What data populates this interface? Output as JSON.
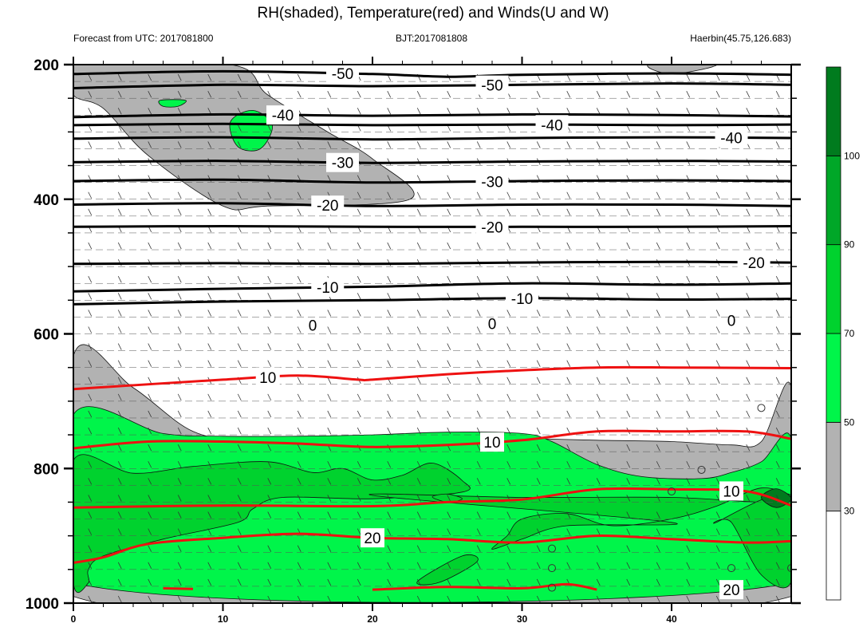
{
  "chart_data": {
    "type": "contour",
    "title": "RH(shaded), Temperature(red) and Winds(U and W)",
    "left_string": "Forecast from UTC: 2017081800",
    "center_string": "BJT:2017081808",
    "right_string": "Haerbin(45.75,126.683)",
    "x_axis": {
      "range": [
        0,
        48
      ],
      "ticks": [
        "0",
        "10",
        "20",
        "30",
        "40"
      ]
    },
    "y_axis": {
      "range": [
        200,
        1000
      ],
      "reversed": true,
      "ticks": [
        "200",
        "400",
        "600",
        "800",
        "1000"
      ]
    },
    "colorbar": {
      "levels": [
        "30",
        "50",
        "70",
        "90",
        "100"
      ],
      "colors": [
        "#ffffff",
        "#b2b2b2",
        "#00f54a",
        "#00d22e",
        "#00a728",
        "#007b1e"
      ]
    },
    "rh_regions": [
      {
        "level": "50-70",
        "color": "#b2b2b2",
        "points": [
          [
            0,
            200
          ],
          [
            10.5,
            200
          ],
          [
            13,
            245
          ],
          [
            17,
            300
          ],
          [
            20,
            340
          ],
          [
            22.5,
            400
          ],
          [
            13,
            410
          ],
          [
            10,
            410
          ],
          [
            5,
            335
          ],
          [
            2,
            265
          ],
          [
            0,
            245
          ]
        ]
      },
      {
        "level": "50-70",
        "color": "#b2b2b2",
        "points": [
          [
            38.5,
            200
          ],
          [
            43,
            200
          ],
          [
            40,
            214
          ]
        ]
      },
      {
        "level": "70-90",
        "color": "#00f54a",
        "points": [
          [
            5.8,
            253
          ],
          [
            7.5,
            253
          ],
          [
            7,
            262
          ],
          [
            6,
            262
          ]
        ]
      },
      {
        "level": "70-90",
        "color": "#00f54a",
        "points": [
          [
            10.5,
            285
          ],
          [
            12,
            268
          ],
          [
            13.3,
            290
          ],
          [
            12.5,
            325
          ],
          [
            11,
            322
          ]
        ]
      },
      {
        "level": "50-70",
        "color": "#b2b2b2",
        "points": [
          [
            0,
            633
          ],
          [
            4,
            680
          ],
          [
            8,
            745
          ],
          [
            12,
            760
          ],
          [
            15,
            760
          ],
          [
            20,
            753
          ],
          [
            25,
            750
          ],
          [
            30,
            755
          ],
          [
            35,
            758
          ],
          [
            40,
            760
          ],
          [
            44,
            765
          ],
          [
            46,
            760
          ],
          [
            48,
            680
          ],
          [
            48,
            990
          ],
          [
            0,
            990
          ]
        ]
      },
      {
        "level": "70-90",
        "color": "#00f54a",
        "points": [
          [
            0,
            720
          ],
          [
            6,
            748
          ],
          [
            10,
            752
          ],
          [
            15,
            752
          ],
          [
            20,
            750
          ],
          [
            25,
            746
          ],
          [
            30,
            748
          ],
          [
            32,
            760
          ],
          [
            35,
            794
          ],
          [
            38,
            812
          ],
          [
            42,
            815
          ],
          [
            44,
            806
          ],
          [
            46,
            790
          ],
          [
            48,
            756
          ],
          [
            48,
            970
          ],
          [
            0,
            970
          ]
        ]
      },
      {
        "level": "90-100",
        "color": "#00d22e",
        "points": [
          [
            0,
            788
          ],
          [
            4,
            807
          ],
          [
            8,
            797
          ],
          [
            13,
            790
          ],
          [
            16,
            806
          ],
          [
            18,
            800
          ],
          [
            20,
            817
          ],
          [
            22,
            810
          ],
          [
            24,
            792
          ],
          [
            26,
            818
          ],
          [
            26,
            835
          ],
          [
            20,
            845
          ],
          [
            14,
            843
          ],
          [
            12,
            860
          ],
          [
            11,
            880
          ],
          [
            6,
            905
          ],
          [
            2,
            930
          ],
          [
            1,
            950
          ],
          [
            1,
            970
          ],
          [
            0,
            970
          ]
        ]
      },
      {
        "level": "90-100",
        "color": "#00d22e",
        "points": [
          [
            20,
            840
          ],
          [
            30,
            843
          ],
          [
            40,
            843
          ],
          [
            46,
            850
          ],
          [
            48,
            843
          ],
          [
            46,
            829
          ],
          [
            43,
            856
          ],
          [
            40,
            875
          ],
          [
            36,
            885
          ],
          [
            33,
            867
          ],
          [
            30,
            875
          ],
          [
            29,
            900
          ],
          [
            28,
            920
          ],
          [
            30,
            905
          ],
          [
            33,
            885
          ],
          [
            40,
            880
          ]
        ]
      },
      {
        "level": "90-100",
        "color": "#00d22e",
        "points": [
          [
            43,
            880
          ],
          [
            48,
            840
          ],
          [
            48,
            968
          ],
          [
            46,
            958
          ],
          [
            44,
            880
          ]
        ]
      },
      {
        "level": "90-100",
        "color": "#00d22e",
        "points": [
          [
            23,
            968
          ],
          [
            26,
            930
          ],
          [
            27,
            938
          ],
          [
            24.5,
            969
          ]
        ]
      },
      {
        "level": "90-100",
        "color": "#00d22e",
        "points": [
          [
            24,
            842
          ],
          [
            25,
            838
          ],
          [
            26,
            845
          ],
          [
            25,
            850
          ]
        ]
      },
      {
        "level": "100+",
        "color": "#007b1e",
        "points": [
          [
            46,
            843
          ],
          [
            47,
            830
          ],
          [
            48,
            845
          ],
          [
            47,
            858
          ]
        ]
      }
    ],
    "temperature_contours": [
      {
        "label": "-50",
        "color": "#000000",
        "points": [
          [
            0,
            214
          ],
          [
            10,
            210
          ],
          [
            20,
            214
          ],
          [
            25,
            218
          ],
          [
            30,
            215
          ],
          [
            40,
            213
          ],
          [
            48,
            215
          ]
        ],
        "label_x": 18
      },
      {
        "label": "-50",
        "color": "#000000",
        "points": [
          [
            0,
            235
          ],
          [
            10,
            230
          ],
          [
            20,
            232
          ],
          [
            30,
            230
          ],
          [
            40,
            228
          ],
          [
            48,
            230
          ]
        ],
        "label_x": 28
      },
      {
        "label": "-40",
        "color": "#000000",
        "points": [
          [
            0,
            278
          ],
          [
            10,
            274
          ],
          [
            20,
            276
          ],
          [
            30,
            274
          ],
          [
            40,
            275
          ],
          [
            48,
            277
          ]
        ],
        "label_x": 14
      },
      {
        "label": "-40",
        "color": "#000000",
        "points": [
          [
            0,
            290
          ],
          [
            10,
            288
          ],
          [
            20,
            290
          ],
          [
            30,
            289
          ],
          [
            40,
            290
          ],
          [
            48,
            289
          ]
        ],
        "label_x": 32
      },
      {
        "label": "-40",
        "color": "#000000",
        "points": [
          [
            0,
            310
          ],
          [
            10,
            308
          ],
          [
            20,
            311
          ],
          [
            30,
            309
          ],
          [
            40,
            308
          ],
          [
            48,
            309
          ]
        ],
        "label_x": 44
      },
      {
        "label": "-30",
        "color": "#000000",
        "points": [
          [
            0,
            345
          ],
          [
            10,
            343
          ],
          [
            20,
            346
          ],
          [
            30,
            344
          ],
          [
            40,
            343
          ],
          [
            48,
            344
          ]
        ],
        "label_x": 18
      },
      {
        "label": "-30",
        "color": "#000000",
        "points": [
          [
            0,
            373
          ],
          [
            10,
            371
          ],
          [
            20,
            375
          ],
          [
            30,
            373
          ],
          [
            40,
            372
          ],
          [
            48,
            373
          ]
        ],
        "label_x": 28
      },
      {
        "label": "-20",
        "color": "#000000",
        "points": [
          [
            0,
            408
          ],
          [
            10,
            406
          ],
          [
            20,
            410
          ],
          [
            30,
            408
          ],
          [
            40,
            408
          ],
          [
            48,
            410
          ]
        ],
        "label_x": 17
      },
      {
        "label": "-20",
        "color": "#000000",
        "points": [
          [
            0,
            441
          ],
          [
            10,
            440
          ],
          [
            20,
            441
          ],
          [
            30,
            441
          ],
          [
            40,
            441
          ],
          [
            48,
            440
          ]
        ],
        "label_x": 28
      },
      {
        "label": "-20",
        "color": "#000000",
        "points": [
          [
            0,
            496
          ],
          [
            10,
            495
          ],
          [
            20,
            496
          ],
          [
            30,
            494
          ],
          [
            40,
            493
          ],
          [
            48,
            494
          ]
        ],
        "label_x": 45.5
      },
      {
        "label": "-10",
        "color": "#000000",
        "points": [
          [
            0,
            537
          ],
          [
            10,
            533
          ],
          [
            20,
            530
          ],
          [
            30,
            525
          ],
          [
            40,
            527
          ],
          [
            48,
            525
          ]
        ],
        "label_x": 17
      },
      {
        "label": "-10",
        "color": "#000000",
        "points": [
          [
            0,
            556
          ],
          [
            10,
            552
          ],
          [
            20,
            550
          ],
          [
            30,
            547
          ],
          [
            40,
            549
          ],
          [
            48,
            548
          ]
        ],
        "label_x": 30
      },
      {
        "label": "10",
        "color": "#ee1111",
        "points": [
          [
            0,
            682
          ],
          [
            10,
            668
          ],
          [
            15,
            662
          ],
          [
            19,
            668
          ],
          [
            20,
            668
          ],
          [
            25,
            660
          ],
          [
            30,
            654
          ],
          [
            35,
            650
          ],
          [
            40,
            650
          ],
          [
            48,
            651
          ]
        ],
        "label_x": 13
      },
      {
        "label": "10",
        "color": "#ee1111",
        "points": [
          [
            0,
            770
          ],
          [
            5,
            760
          ],
          [
            10,
            760
          ],
          [
            15,
            763
          ],
          [
            20,
            768
          ],
          [
            25,
            765
          ],
          [
            30,
            758
          ],
          [
            35,
            745
          ],
          [
            40,
            745
          ],
          [
            45,
            745
          ],
          [
            48,
            756
          ]
        ],
        "label_x": 28
      },
      {
        "label": "10",
        "color": "#ee1111",
        "points": [
          [
            0,
            858
          ],
          [
            10,
            855
          ],
          [
            20,
            856
          ],
          [
            25,
            850
          ],
          [
            30,
            846
          ],
          [
            35,
            831
          ],
          [
            40,
            831
          ],
          [
            45,
            834
          ],
          [
            48,
            855
          ]
        ],
        "label_x": 44
      },
      {
        "label": "20",
        "color": "#ee1111",
        "points": [
          [
            0,
            940
          ],
          [
            2,
            932
          ],
          [
            5,
            912
          ],
          [
            10,
            903
          ],
          [
            15,
            897
          ],
          [
            20,
            903
          ],
          [
            25,
            905
          ],
          [
            30,
            910
          ],
          [
            35,
            900
          ],
          [
            40,
            905
          ],
          [
            45,
            910
          ],
          [
            48,
            908
          ]
        ],
        "label_x": 20
      },
      {
        "label": "20",
        "color": "#ee1111",
        "points": [
          [
            6,
            978
          ],
          [
            8,
            979
          ]
        ],
        "label_x": 30
      },
      {
        "label": "20",
        "color": "#ee1111",
        "points": [
          [
            20,
            980
          ],
          [
            25,
            976
          ],
          [
            30,
            978
          ],
          [
            33,
            972
          ],
          [
            35,
            980
          ]
        ],
        "label_x": 44
      }
    ],
    "zero_labels": [
      {
        "label": "0",
        "x": 16,
        "y": 595
      },
      {
        "label": "0",
        "x": 28,
        "y": 593
      },
      {
        "label": "0",
        "x": 44,
        "y": 588
      }
    ],
    "wind_open_circles": [
      [
        46,
        710
      ],
      [
        42,
        802
      ],
      [
        40,
        834
      ],
      [
        32,
        919
      ],
      [
        32,
        948
      ],
      [
        44,
        948
      ],
      [
        48,
        948
      ],
      [
        32,
        977
      ]
    ]
  }
}
